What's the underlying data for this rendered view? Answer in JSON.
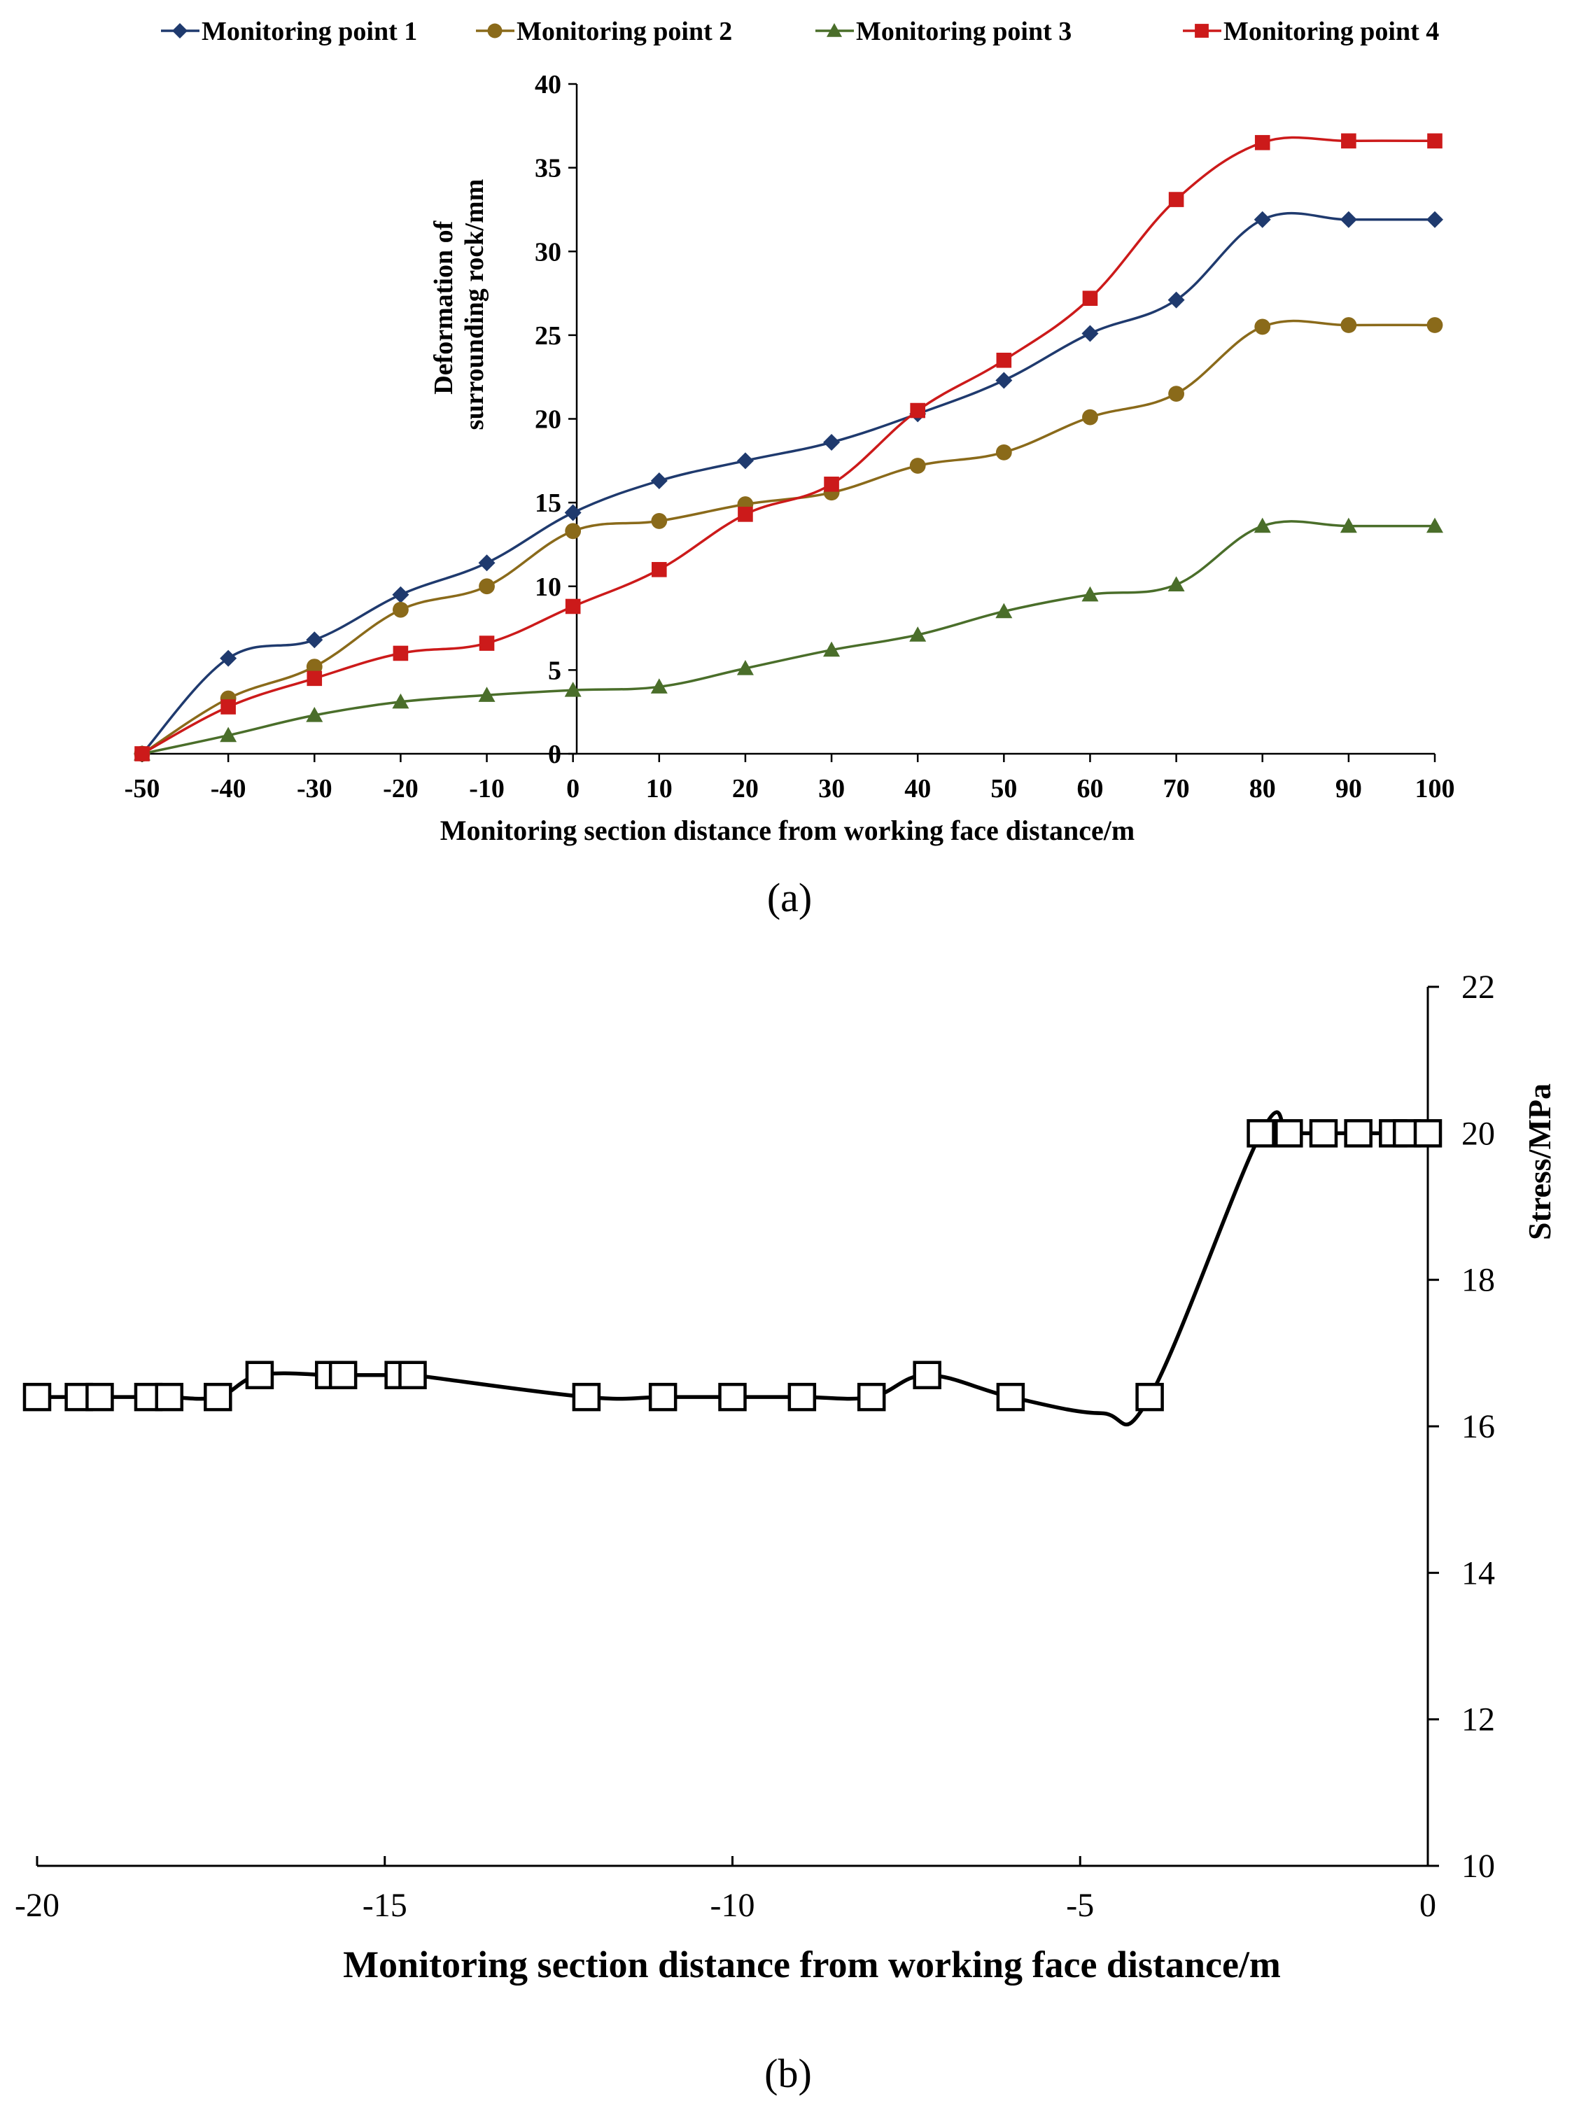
{
  "chart_data": [
    {
      "type": "line",
      "panel_label": "(a)",
      "xlabel": "Monitoring section distance from working face distance/m",
      "ylabel_lines": [
        "Deformation of",
        "surrounding rock/mm"
      ],
      "xlim": [
        -50,
        100
      ],
      "ylim": [
        0,
        40
      ],
      "x_ticks": [
        -50,
        -40,
        -30,
        -20,
        -10,
        0,
        10,
        20,
        30,
        40,
        50,
        60,
        70,
        80,
        90,
        100
      ],
      "y_ticks": [
        0,
        5,
        10,
        15,
        20,
        25,
        30,
        35,
        40
      ],
      "x": [
        -50,
        -40,
        -30,
        -20,
        -10,
        0,
        10,
        20,
        30,
        40,
        50,
        60,
        70,
        80,
        90,
        100
      ],
      "legend_position": "top",
      "series": [
        {
          "name": "Monitoring point 1",
          "color": "#1f3a6e",
          "marker": "diamond",
          "values": [
            0,
            5.7,
            6.8,
            9.5,
            11.4,
            14.4,
            16.3,
            17.5,
            18.6,
            20.3,
            22.3,
            25.1,
            27.1,
            31.9,
            31.9,
            31.9
          ]
        },
        {
          "name": "Monitoring point 2",
          "color": "#8a6a1a",
          "marker": "circle",
          "values": [
            0,
            3.3,
            5.2,
            8.6,
            10.0,
            13.3,
            13.9,
            14.9,
            15.6,
            17.2,
            18.0,
            20.1,
            21.5,
            25.5,
            25.6,
            25.6
          ]
        },
        {
          "name": "Monitoring point 3",
          "color": "#4a6e2a",
          "marker": "triangle",
          "values": [
            0,
            1.1,
            2.3,
            3.1,
            3.5,
            3.8,
            4.0,
            5.1,
            6.2,
            7.1,
            8.5,
            9.5,
            10.1,
            13.6,
            13.6,
            13.6
          ]
        },
        {
          "name": "Monitoring point 4",
          "color": "#cc1a1a",
          "marker": "square",
          "values": [
            0,
            2.8,
            4.5,
            6.0,
            6.6,
            8.8,
            11.0,
            14.3,
            16.1,
            20.5,
            23.5,
            27.2,
            33.1,
            36.5,
            36.6,
            36.6
          ]
        }
      ]
    },
    {
      "type": "line",
      "panel_label": "(b)",
      "xlabel": "Monitoring section distance from working face distance/m",
      "ylabel": "Stress/MPa",
      "xlim": [
        -20,
        0
      ],
      "ylim": [
        10,
        22
      ],
      "x_ticks": [
        -20,
        -15,
        -10,
        -5,
        0
      ],
      "y_ticks": [
        10,
        12,
        14,
        16,
        18,
        20,
        22
      ],
      "y_axis_side": "right",
      "series": [
        {
          "name": "Stress",
          "color": "#000000",
          "marker": "open-square",
          "x": [
            -20,
            -19.4,
            -19.1,
            -18.4,
            -18.1,
            -17.4,
            -16.8,
            -15.8,
            -15.6,
            -14.8,
            -14.6,
            -12.1,
            -11.0,
            -10.0,
            -9.0,
            -8.0,
            -7.2,
            -6.0,
            -4.0,
            -2.4,
            -2.0,
            -1.5,
            -1.0,
            -0.5,
            -0.3,
            0
          ],
          "values": [
            16.4,
            16.4,
            16.4,
            16.4,
            16.4,
            16.4,
            16.7,
            16.7,
            16.7,
            16.7,
            16.7,
            16.4,
            16.4,
            16.4,
            16.4,
            16.4,
            16.7,
            16.4,
            16.4,
            20.0,
            20.0,
            20.0,
            20.0,
            20.0,
            20.0,
            20.0
          ]
        }
      ]
    }
  ]
}
